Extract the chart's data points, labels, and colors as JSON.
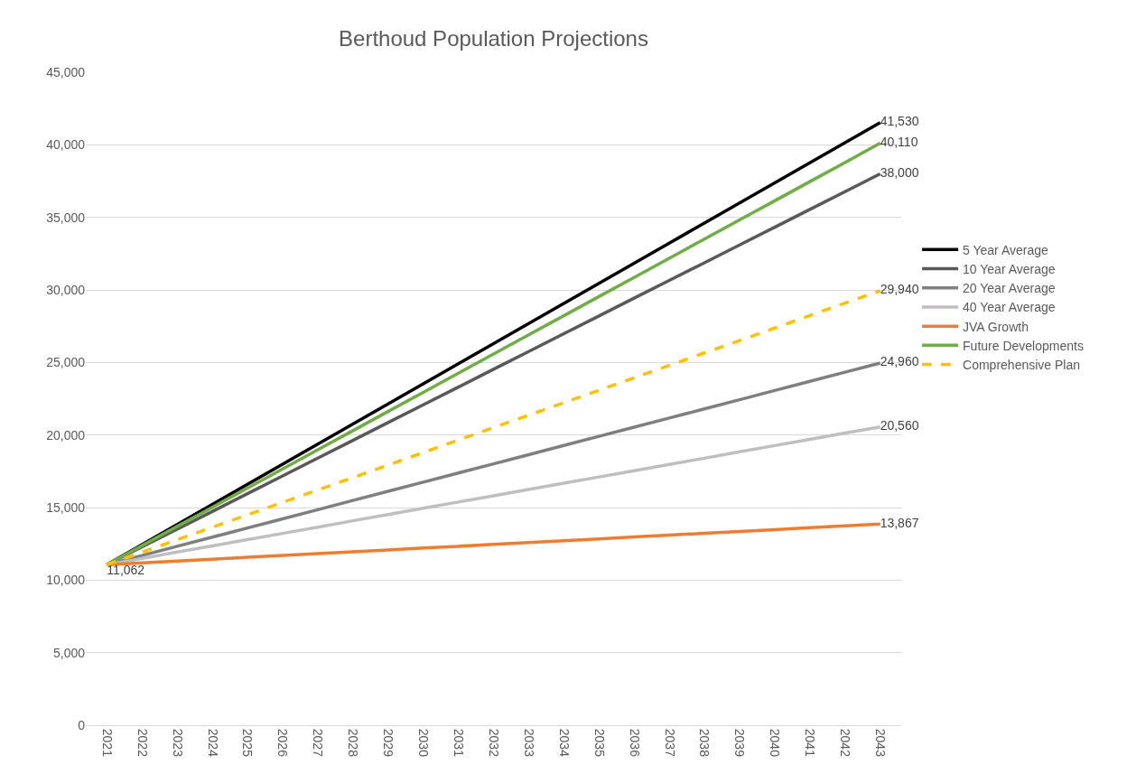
{
  "chart_data": {
    "type": "line",
    "title": "Berthoud Population Projections",
    "categories": [
      "2021",
      "2022",
      "2023",
      "2024",
      "2025",
      "2026",
      "2027",
      "2028",
      "2029",
      "2030",
      "2031",
      "2032",
      "2033",
      "2034",
      "2035",
      "2036",
      "2037",
      "2038",
      "2039",
      "2040",
      "2041",
      "2042",
      "2043"
    ],
    "ylim": [
      0,
      45000
    ],
    "yticks": [
      {
        "value": 0,
        "label": "0"
      },
      {
        "value": 5000,
        "label": "5,000"
      },
      {
        "value": 10000,
        "label": "10,000"
      },
      {
        "value": 15000,
        "label": "15,000"
      },
      {
        "value": 20000,
        "label": "20,000"
      },
      {
        "value": 25000,
        "label": "25,000"
      },
      {
        "value": 30000,
        "label": "30,000"
      },
      {
        "value": 35000,
        "label": "35,000"
      },
      {
        "value": 40000,
        "label": "40,000"
      },
      {
        "value": 45000,
        "label": "45,000"
      }
    ],
    "grid": "y",
    "legend": "right",
    "series": [
      {
        "name": "5 Year Average",
        "color": "#000000",
        "values": [
          11062,
          12450,
          13830,
          15220,
          16600,
          17990,
          19370,
          20760,
          22140,
          23530,
          24910,
          26300,
          27680,
          29070,
          30450,
          31840,
          33220,
          34610,
          35990,
          37380,
          38760,
          40150,
          41530
        ],
        "value_labels": [
          null,
          null,
          null,
          null,
          null,
          null,
          null,
          null,
          null,
          null,
          null,
          null,
          null,
          null,
          null,
          null,
          null,
          null,
          null,
          null,
          null,
          null,
          "41,530"
        ]
      },
      {
        "name": "10 Year Average",
        "color": "#595959",
        "values": [
          11062,
          12290,
          13510,
          14730,
          15960,
          17180,
          18410,
          19630,
          20860,
          22080,
          23300,
          24530,
          25750,
          26980,
          28200,
          29430,
          30650,
          31870,
          33100,
          34320,
          35550,
          36770,
          38000
        ],
        "value_labels": [
          null,
          null,
          null,
          null,
          null,
          null,
          null,
          null,
          null,
          null,
          null,
          null,
          null,
          null,
          null,
          null,
          null,
          null,
          null,
          null,
          null,
          null,
          "38,000"
        ]
      },
      {
        "name": "20 Year Average",
        "color": "#7f7f7f",
        "values": [
          11062,
          11690,
          12330,
          12960,
          13590,
          14220,
          14850,
          15490,
          16120,
          16750,
          17380,
          18010,
          18640,
          19280,
          19910,
          20540,
          21170,
          21800,
          22430,
          23070,
          23700,
          24330,
          24960
        ],
        "value_labels": [
          null,
          null,
          null,
          null,
          null,
          null,
          null,
          null,
          null,
          null,
          null,
          null,
          null,
          null,
          null,
          null,
          null,
          null,
          null,
          null,
          null,
          null,
          "24,960"
        ]
      },
      {
        "name": "40 Year Average",
        "color": "#bfbfbf",
        "values": [
          11062,
          11490,
          11930,
          12360,
          12790,
          13220,
          13650,
          14090,
          14520,
          14950,
          15380,
          15810,
          16250,
          16680,
          17110,
          17540,
          17970,
          18400,
          18840,
          19270,
          19700,
          20130,
          20560
        ],
        "value_labels": [
          null,
          null,
          null,
          null,
          null,
          null,
          null,
          null,
          null,
          null,
          null,
          null,
          null,
          null,
          null,
          null,
          null,
          null,
          null,
          null,
          null,
          null,
          "20,560"
        ]
      },
      {
        "name": "JVA Growth",
        "color": "#ed7d31",
        "values": [
          11062,
          11190,
          11320,
          11440,
          11570,
          11700,
          11830,
          11950,
          12080,
          12210,
          12330,
          12460,
          12590,
          12720,
          12840,
          12970,
          13100,
          13230,
          13350,
          13480,
          13610,
          13740,
          13867
        ],
        "value_labels": [
          "11,062",
          null,
          null,
          null,
          null,
          null,
          null,
          null,
          null,
          null,
          null,
          null,
          null,
          null,
          null,
          null,
          null,
          null,
          null,
          null,
          null,
          null,
          "13,867"
        ]
      },
      {
        "name": "Future Developments",
        "color": "#70ad47",
        "values": [
          11062,
          12380,
          13700,
          15020,
          16340,
          17660,
          18980,
          20300,
          21620,
          22940,
          24260,
          25580,
          26900,
          28220,
          29540,
          30860,
          32180,
          33500,
          34820,
          36140,
          37460,
          38780,
          40110
        ],
        "value_labels": [
          null,
          null,
          null,
          null,
          null,
          null,
          null,
          null,
          null,
          null,
          null,
          null,
          null,
          null,
          null,
          null,
          null,
          null,
          null,
          null,
          null,
          null,
          "40,110"
        ]
      },
      {
        "name": "Comprehensive Plan",
        "color": "#ffc000",
        "line_style": "dashed",
        "values": [
          11062,
          11920,
          12780,
          13640,
          14500,
          15350,
          16210,
          17070,
          17930,
          18790,
          19650,
          20510,
          21360,
          22220,
          23080,
          23940,
          24800,
          25660,
          26510,
          27370,
          28230,
          29090,
          29940
        ],
        "value_labels": [
          null,
          null,
          null,
          null,
          null,
          null,
          null,
          null,
          null,
          null,
          null,
          null,
          null,
          null,
          null,
          null,
          null,
          null,
          null,
          null,
          null,
          null,
          "29,940"
        ]
      }
    ]
  }
}
